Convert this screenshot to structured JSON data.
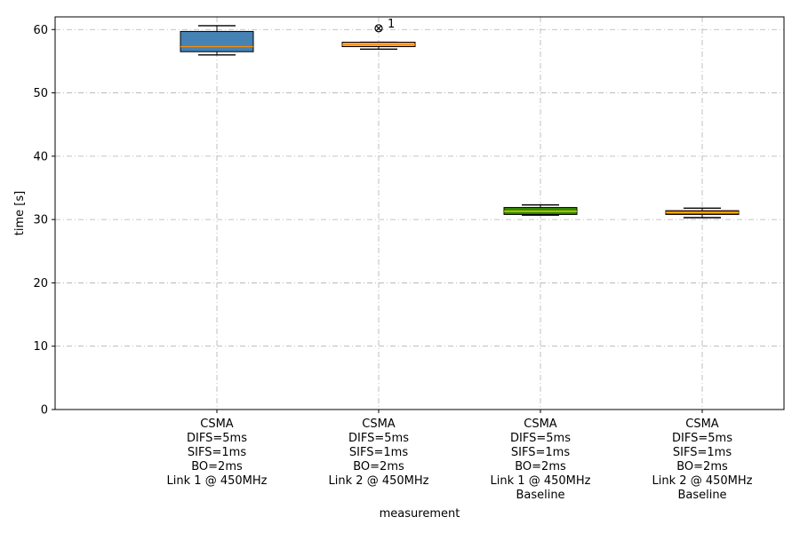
{
  "chart_data": {
    "type": "box",
    "xlabel": "measurement",
    "ylabel": "time [s]",
    "ylim": [
      0,
      62
    ],
    "yticks": [
      0,
      10,
      20,
      30,
      40,
      50,
      60
    ],
    "grid": true,
    "categories": [
      [
        "CSMA",
        "DIFS=5ms",
        "SIFS=1ms",
        "BO=2ms",
        "Link 1 @ 450MHz"
      ],
      [
        "CSMA",
        "DIFS=5ms",
        "SIFS=1ms",
        "BO=2ms",
        "Link 2 @ 450MHz"
      ],
      [
        "CSMA",
        "DIFS=5ms",
        "SIFS=1ms",
        "BO=2ms",
        "Link 1 @ 450MHz",
        "Baseline"
      ],
      [
        "CSMA",
        "DIFS=5ms",
        "SIFS=1ms",
        "BO=2ms",
        "Link 2 @ 450MHz",
        "Baseline"
      ]
    ],
    "boxes": [
      {
        "whisker_low": 56.0,
        "q1": 56.5,
        "median": 57.3,
        "q3": 59.7,
        "whisker_high": 60.6,
        "color": "#4682b4",
        "median_color": "#ff8c00",
        "outliers": []
      },
      {
        "whisker_low": 56.9,
        "q1": 57.3,
        "median": 57.6,
        "q3": 58.0,
        "whisker_high": 58.0,
        "color": "#f4a460",
        "median_color": "#ff8c00",
        "outliers": [
          {
            "value": 60.2,
            "label": "1"
          }
        ]
      },
      {
        "whisker_low": 30.7,
        "q1": 30.8,
        "median": 31.3,
        "q3": 31.9,
        "whisker_high": 32.3,
        "color": "#2e8b00",
        "median_color": "#ffd700",
        "outliers": []
      },
      {
        "whisker_low": 30.3,
        "q1": 30.8,
        "median": 31.1,
        "q3": 31.4,
        "whisker_high": 31.8,
        "color": "#e83000",
        "median_color": "#ffd700",
        "outliers": []
      }
    ]
  }
}
